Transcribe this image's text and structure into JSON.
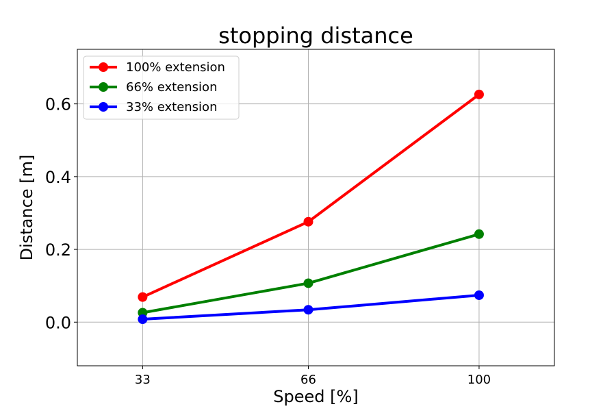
{
  "chart_data": {
    "type": "line",
    "title": "stopping distance",
    "xlabel": "Speed [%]",
    "ylabel": "Distance [m]",
    "x": [
      33,
      66,
      100
    ],
    "xticks": [
      "33",
      "66",
      "100"
    ],
    "xlim": [
      20,
      115
    ],
    "ylim": [
      -0.12,
      0.75
    ],
    "yticks": [
      0.0,
      0.2,
      0.4,
      0.6
    ],
    "ytick_labels": [
      "0.0",
      "0.2",
      "0.4",
      "0.6"
    ],
    "grid": true,
    "legend_position": "top-left",
    "series": [
      {
        "name": "100% extension",
        "color": "#ff0000",
        "values": [
          0.069,
          0.276,
          0.626
        ]
      },
      {
        "name": "66% extension",
        "color": "#008000",
        "values": [
          0.026,
          0.107,
          0.242
        ]
      },
      {
        "name": "33% extension",
        "color": "#0000ff",
        "values": [
          0.008,
          0.034,
          0.074
        ]
      }
    ]
  }
}
